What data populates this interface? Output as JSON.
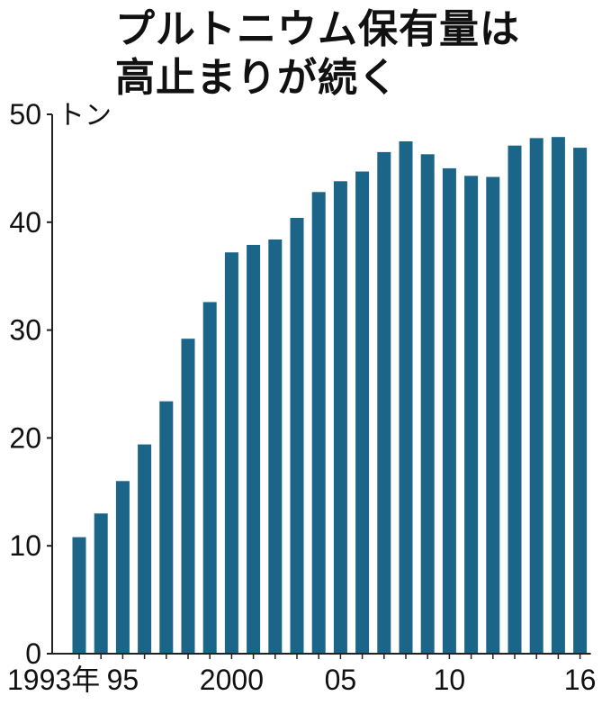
{
  "chart_data": {
    "type": "bar",
    "title": "プルトニウム保有量は高止まりが続く",
    "title_lines": [
      "プルトニウム保有量は",
      "高止まりが続く"
    ],
    "unit": "トン",
    "categories": [
      "1993",
      "1994",
      "1995",
      "1996",
      "1997",
      "1998",
      "1999",
      "2000",
      "2001",
      "2002",
      "2003",
      "2004",
      "2005",
      "2006",
      "2007",
      "2008",
      "2009",
      "2010",
      "2011",
      "2012",
      "2013",
      "2014",
      "2015",
      "2016"
    ],
    "values": [
      10.8,
      13.0,
      16.0,
      19.4,
      23.4,
      29.2,
      32.6,
      37.2,
      37.9,
      38.4,
      40.4,
      42.8,
      43.8,
      44.7,
      46.5,
      47.5,
      46.3,
      45.0,
      44.3,
      44.2,
      47.1,
      47.8,
      47.9,
      46.9
    ],
    "x_tick_labels": [
      {
        "index": 0,
        "label": "1993年"
      },
      {
        "index": 2,
        "label": "95"
      },
      {
        "index": 7,
        "label": "2000"
      },
      {
        "index": 12,
        "label": "05"
      },
      {
        "index": 17,
        "label": "10"
      },
      {
        "index": 23,
        "label": "16"
      }
    ],
    "y_ticks": [
      0,
      10,
      20,
      30,
      40,
      50
    ],
    "ylim": [
      0,
      50
    ],
    "xlabel": "",
    "ylabel": "",
    "grid": false,
    "bar_color": "#1a6588",
    "axis_color": "#222222"
  }
}
